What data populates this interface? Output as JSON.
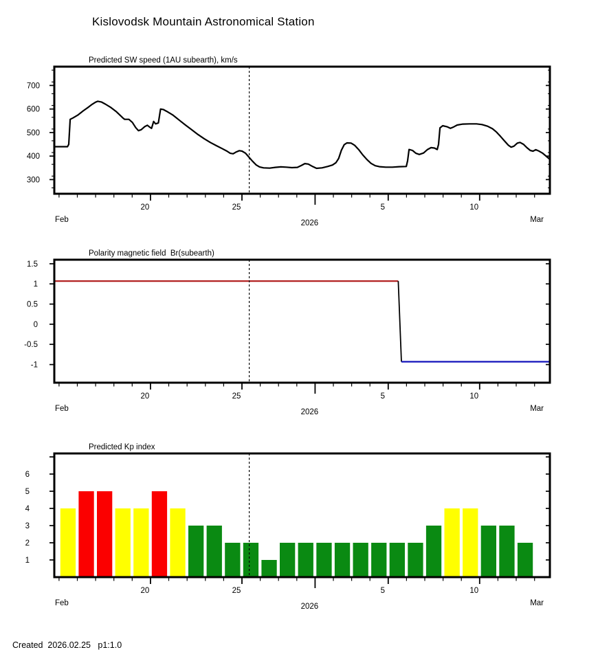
{
  "title": "Kislovodsk Mountain Astronomical Station",
  "footer": {
    "created_text": "Created  2026.02.25   p1:1.0"
  },
  "x_axis": {
    "domain_days": [
      -0.26,
      26.84
    ],
    "day_ticks_from": 0,
    "day_ticks_to": 26,
    "labeled_ticks": [
      {
        "day": 5,
        "label": "20"
      },
      {
        "day": 10,
        "label": "25"
      },
      {
        "day": 18,
        "label": "5"
      },
      {
        "day": 23,
        "label": "10"
      }
    ],
    "month_boundary_day": 14,
    "start_month_label": "Feb",
    "end_month_label": "Mar",
    "year_label": "2026"
  },
  "forecast_marker_day": 10.4,
  "chart_data": [
    {
      "type": "line",
      "title": "Predicted SW speed (1AU subearth), km/s",
      "ylabel": "km/s",
      "ylim": [
        240,
        780
      ],
      "yticks": [
        300,
        400,
        500,
        600,
        700
      ],
      "y_minor_step": 50,
      "line_color": "#000000",
      "points": [
        [
          -0.26,
          440
        ],
        [
          0.46,
          440
        ],
        [
          0.53,
          450
        ],
        [
          0.61,
          556
        ],
        [
          0.76,
          562
        ],
        [
          1.02,
          574
        ],
        [
          1.32,
          592
        ],
        [
          1.59,
          607
        ],
        [
          1.81,
          620
        ],
        [
          2.0,
          629
        ],
        [
          2.12,
          633
        ],
        [
          2.31,
          630
        ],
        [
          2.53,
          621
        ],
        [
          2.84,
          606
        ],
        [
          3.14,
          588
        ],
        [
          3.36,
          572
        ],
        [
          3.52,
          560
        ],
        [
          3.59,
          556
        ],
        [
          3.82,
          556
        ],
        [
          4.01,
          543
        ],
        [
          4.19,
          521
        ],
        [
          4.34,
          508
        ],
        [
          4.49,
          512
        ],
        [
          4.68,
          525
        ],
        [
          4.83,
          531
        ],
        [
          4.94,
          524
        ],
        [
          5.06,
          518
        ],
        [
          5.17,
          547
        ],
        [
          5.28,
          537
        ],
        [
          5.43,
          541
        ],
        [
          5.55,
          600
        ],
        [
          5.7,
          598
        ],
        [
          5.89,
          590
        ],
        [
          6.23,
          574
        ],
        [
          6.57,
          553
        ],
        [
          6.91,
          532
        ],
        [
          7.25,
          512
        ],
        [
          7.59,
          492
        ],
        [
          7.93,
          474
        ],
        [
          8.27,
          458
        ],
        [
          8.61,
          444
        ],
        [
          8.91,
          432
        ],
        [
          9.18,
          421
        ],
        [
          9.36,
          412
        ],
        [
          9.52,
          410
        ],
        [
          9.67,
          417
        ],
        [
          9.86,
          423
        ],
        [
          10.01,
          421
        ],
        [
          10.2,
          412
        ],
        [
          10.39,
          395
        ],
        [
          10.58,
          378
        ],
        [
          10.77,
          363
        ],
        [
          10.96,
          354
        ],
        [
          11.18,
          350
        ],
        [
          11.52,
          349
        ],
        [
          11.82,
          352
        ],
        [
          12.13,
          354
        ],
        [
          12.43,
          353
        ],
        [
          12.73,
          351
        ],
        [
          13.03,
          352
        ],
        [
          13.25,
          360
        ],
        [
          13.44,
          368
        ],
        [
          13.63,
          366
        ],
        [
          13.86,
          356
        ],
        [
          14.08,
          348
        ],
        [
          14.38,
          350
        ],
        [
          14.69,
          356
        ],
        [
          14.95,
          362
        ],
        [
          15.14,
          372
        ],
        [
          15.29,
          390
        ],
        [
          15.44,
          425
        ],
        [
          15.59,
          448
        ],
        [
          15.74,
          456
        ],
        [
          15.97,
          455
        ],
        [
          16.16,
          446
        ],
        [
          16.38,
          428
        ],
        [
          16.61,
          405
        ],
        [
          16.84,
          385
        ],
        [
          17.06,
          369
        ],
        [
          17.29,
          359
        ],
        [
          17.52,
          355
        ],
        [
          17.86,
          353
        ],
        [
          18.23,
          353
        ],
        [
          18.61,
          355
        ],
        [
          18.99,
          356
        ],
        [
          19.06,
          380
        ],
        [
          19.14,
          428
        ],
        [
          19.33,
          424
        ],
        [
          19.51,
          412
        ],
        [
          19.7,
          407
        ],
        [
          19.93,
          413
        ],
        [
          20.15,
          428
        ],
        [
          20.34,
          436
        ],
        [
          20.53,
          434
        ],
        [
          20.68,
          428
        ],
        [
          20.75,
          450
        ],
        [
          20.83,
          520
        ],
        [
          20.98,
          529
        ],
        [
          21.21,
          525
        ],
        [
          21.4,
          518
        ],
        [
          21.58,
          524
        ],
        [
          21.77,
          532
        ],
        [
          22.08,
          536
        ],
        [
          22.45,
          537
        ],
        [
          22.83,
          537
        ],
        [
          23.13,
          534
        ],
        [
          23.43,
          527
        ],
        [
          23.7,
          516
        ],
        [
          23.92,
          502
        ],
        [
          24.15,
          483
        ],
        [
          24.38,
          462
        ],
        [
          24.57,
          446
        ],
        [
          24.72,
          438
        ],
        [
          24.87,
          442
        ],
        [
          25.06,
          455
        ],
        [
          25.21,
          458
        ],
        [
          25.4,
          450
        ],
        [
          25.58,
          436
        ],
        [
          25.77,
          424
        ],
        [
          25.92,
          421
        ],
        [
          26.07,
          427
        ],
        [
          26.22,
          422
        ],
        [
          26.45,
          412
        ],
        [
          26.6,
          402
        ],
        [
          26.84,
          386
        ]
      ]
    },
    {
      "type": "step_line",
      "title": "Polarity magnetic field  Br(subearth)",
      "ylim": [
        -1.45,
        1.6
      ],
      "yticks": [
        -1,
        -0.5,
        0,
        0.5,
        1,
        1.5
      ],
      "ytick_labels": [
        "-1",
        "-0.5",
        "0",
        "0.5",
        "1",
        "1.5"
      ],
      "segments": [
        {
          "name": "positive-polarity-line",
          "color": "#b22222",
          "points": [
            [
              -0.26,
              1.07
            ],
            [
              18.55,
              1.07
            ]
          ]
        },
        {
          "name": "polarity-transition-line",
          "color": "#000000",
          "points": [
            [
              18.55,
              1.07
            ],
            [
              18.72,
              -0.93
            ]
          ]
        },
        {
          "name": "negative-polarity-line",
          "color": "#1111bb",
          "points": [
            [
              18.72,
              -0.93
            ],
            [
              26.84,
              -0.93
            ]
          ]
        }
      ]
    },
    {
      "type": "bar",
      "title": "Predicted Kp index",
      "ylim": [
        0,
        7.2
      ],
      "yticks": [
        1,
        2,
        3,
        4,
        5,
        6
      ],
      "tick_only": [
        7
      ],
      "color_map": {
        "yellow": "#ffff00",
        "red": "#fb0000",
        "green": "#0a8a12"
      },
      "bar_values": [
        4,
        5,
        5,
        4,
        4,
        5,
        4,
        3,
        3,
        2,
        2,
        1,
        2,
        2,
        2,
        2,
        2,
        2,
        2,
        2,
        3,
        4,
        4,
        3,
        3,
        2
      ],
      "bar_colors": [
        "yellow",
        "red",
        "red",
        "yellow",
        "yellow",
        "red",
        "yellow",
        "green",
        "green",
        "green",
        "green",
        "green",
        "green",
        "green",
        "green",
        "green",
        "green",
        "green",
        "green",
        "green",
        "green",
        "yellow",
        "yellow",
        "green",
        "green",
        "green"
      ]
    }
  ]
}
